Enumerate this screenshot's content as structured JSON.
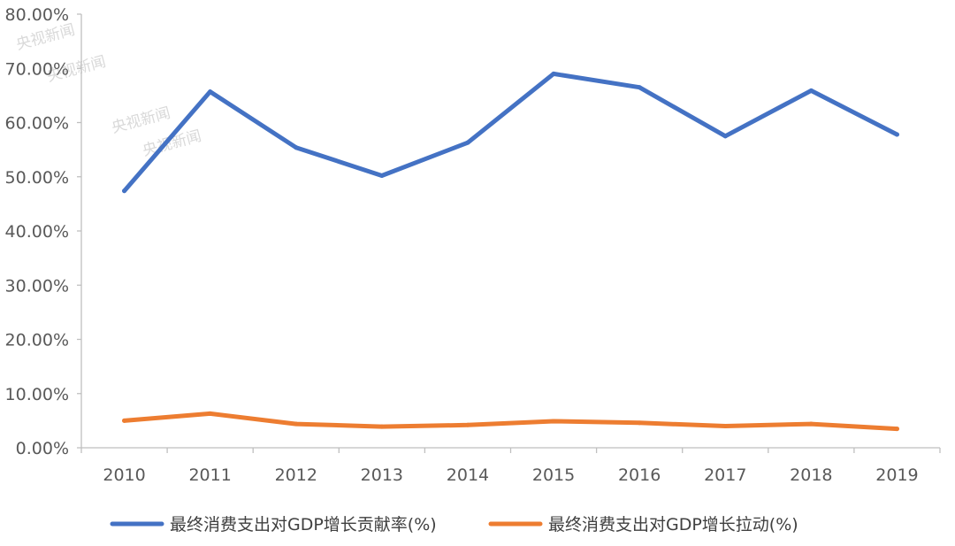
{
  "chart_data": {
    "type": "line",
    "categories": [
      "2010",
      "2011",
      "2012",
      "2013",
      "2014",
      "2015",
      "2016",
      "2017",
      "2018",
      "2019"
    ],
    "series": [
      {
        "name": "最终消费支出对GDP增长贡献率(%)",
        "color": "#4472c4",
        "values": [
          47.4,
          65.7,
          55.4,
          50.2,
          56.3,
          69.0,
          66.5,
          57.5,
          65.9,
          57.8
        ]
      },
      {
        "name": "最终消费支出对GDP增长拉动(%)",
        "color": "#ed7d31",
        "values": [
          5.0,
          6.3,
          4.4,
          3.9,
          4.2,
          4.9,
          4.6,
          4.0,
          4.4,
          3.5
        ]
      }
    ],
    "ylim": [
      0,
      80
    ],
    "y_ticks": [
      "0.00%",
      "10.00%",
      "20.00%",
      "30.00%",
      "40.00%",
      "50.00%",
      "60.00%",
      "70.00%",
      "80.00%"
    ],
    "grid": false,
    "legend_position": "bottom"
  },
  "watermarks": [
    "央视新闻",
    "央视新闻",
    "央视新闻",
    "央视新闻"
  ]
}
